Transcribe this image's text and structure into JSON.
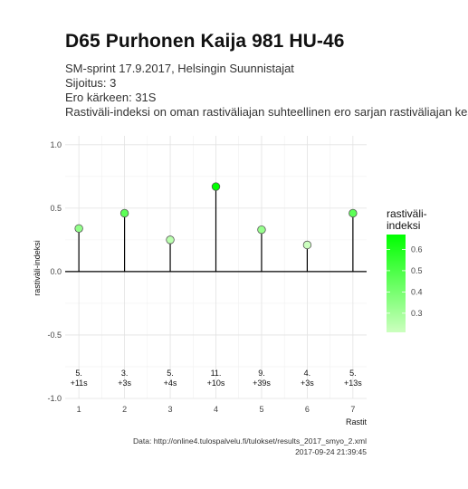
{
  "title": "D65 Purhonen Kaija 981 HU-46",
  "subtitle_lines": [
    "SM-sprint 17.9.2017, Helsingin Suunnistajat",
    "Sijoitus: 3",
    "Ero kärkeen: 31S",
    "Rastiväli-indeksi on oman rastiväliajan suhteellinen ero sarjan rastiväliajan kes"
  ],
  "caption_lines": [
    "Data: http://online4.tulospalvelu.fi/tulokset/results_2017_smyo_2.xml",
    "2017-09-24 21:39:45"
  ],
  "chart_data": {
    "type": "lollipop",
    "xlabel": "Rastit",
    "ylabel": "rastiväli-indeksi",
    "x": [
      1,
      2,
      3,
      4,
      5,
      6,
      7
    ],
    "y": [
      0.34,
      0.46,
      0.25,
      0.67,
      0.33,
      0.21,
      0.46
    ],
    "annotations_rank": [
      "5.",
      "3.",
      "5.",
      "11.",
      "9.",
      "4.",
      "5."
    ],
    "annotations_diff": [
      "+11s",
      "+3s",
      "+4s",
      "+10s",
      "+39s",
      "+3s",
      "+13s"
    ],
    "xlim": [
      0.7,
      7.3
    ],
    "ylim": [
      -1.0,
      1.07
    ],
    "y_ticks": [
      -1.0,
      -0.5,
      0.0,
      0.5,
      1.0
    ],
    "y_tick_labels": [
      "-1.0",
      "-0.5",
      "0.0",
      "0.5",
      "1.0"
    ],
    "x_tick_labels": [
      "1",
      "2",
      "3",
      "4",
      "5",
      "6",
      "7"
    ],
    "grid": true,
    "legend": {
      "title_lines": [
        "rastiväli-",
        "indeksi"
      ],
      "placement": "right",
      "range": [
        0.21,
        0.67
      ],
      "ticks": [
        0.3,
        0.4,
        0.5,
        0.6
      ],
      "tick_labels": [
        "0.3",
        "0.4",
        "0.5",
        "0.6"
      ],
      "color_low": "#ccffbf",
      "color_high": "#00ff00"
    }
  }
}
